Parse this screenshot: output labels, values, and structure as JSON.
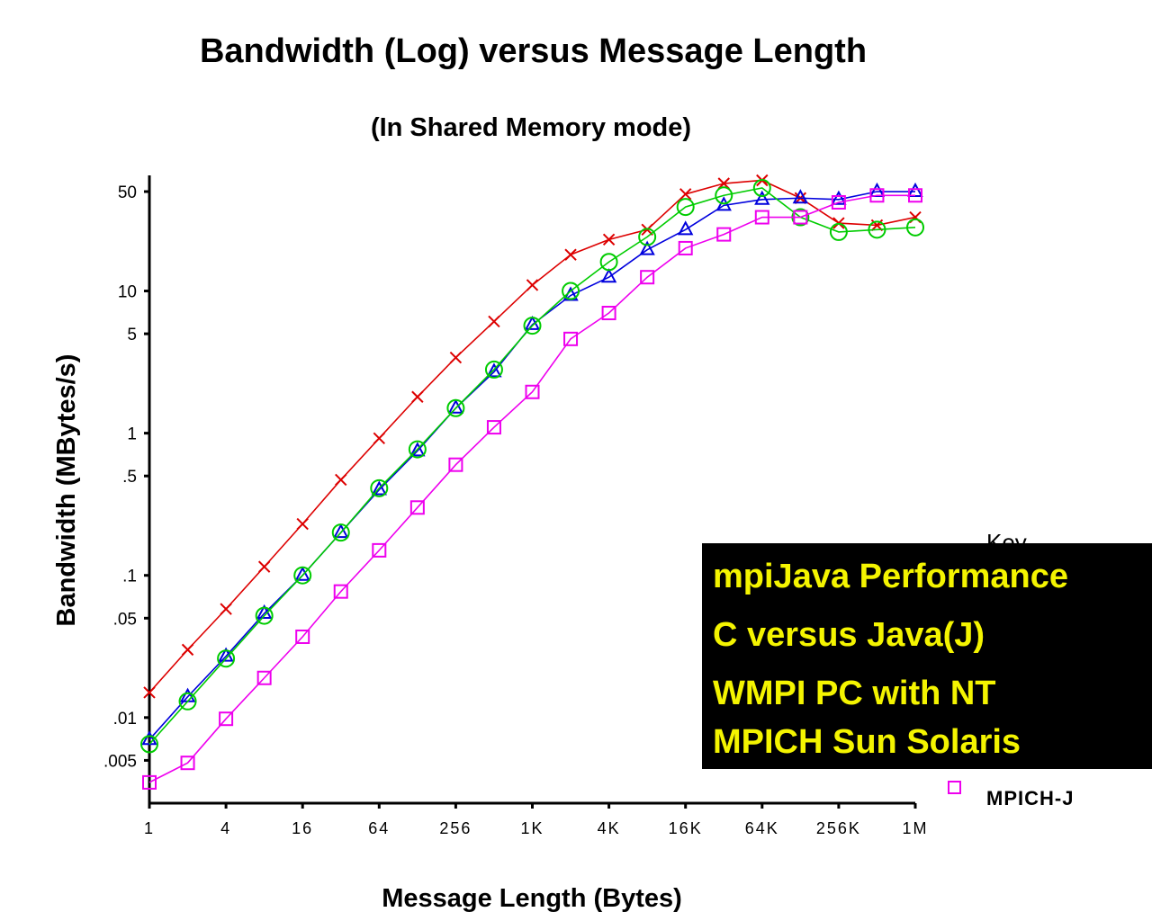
{
  "chart_data": {
    "type": "line",
    "title": "Bandwidth (Log) versus Message Length",
    "subtitle": "(In Shared Memory mode)",
    "xlabel": "Message Length (Bytes)",
    "ylabel": "Bandwidth (MBytes/s)",
    "x_scale": "log2",
    "y_scale": "log10",
    "categories": [
      "1",
      "2",
      "4",
      "8",
      "16",
      "32",
      "64",
      "128",
      "256",
      "512",
      "1K",
      "2K",
      "4K",
      "8K",
      "16K",
      "32K",
      "64K",
      "128K",
      "256K",
      "512K",
      "1M"
    ],
    "x_tick_labels": [
      "1",
      "4",
      "16",
      "64",
      "256",
      "1K",
      "4K",
      "16K",
      "64K",
      "256K",
      "1M"
    ],
    "y_tick_labels": [
      "50",
      "10",
      "5",
      "1",
      ".5",
      ".1",
      ".05",
      ".01",
      ".005"
    ],
    "y_tick_values": [
      50,
      10,
      5,
      1,
      0.5,
      0.1,
      0.05,
      0.01,
      0.005
    ],
    "ylim": [
      0.0025,
      65
    ],
    "grid": false,
    "series": [
      {
        "color": "#dd0000",
        "marker": "x",
        "values": [
          0.015,
          0.03,
          0.058,
          0.115,
          0.23,
          0.47,
          0.92,
          1.8,
          3.4,
          6.1,
          11,
          18,
          23,
          27,
          48,
          57,
          60,
          45,
          30,
          29,
          33
        ]
      },
      {
        "color": "#0000dd",
        "marker": "triangle",
        "values": [
          0.007,
          0.014,
          0.027,
          0.054,
          0.1,
          0.2,
          0.4,
          0.75,
          1.5,
          2.7,
          5.8,
          9.3,
          12.5,
          19.5,
          27,
          40,
          44,
          45,
          44,
          50,
          50
        ]
      },
      {
        "color": "#00cc00",
        "marker": "circle",
        "values": [
          0.0065,
          0.013,
          0.026,
          0.052,
          0.1,
          0.2,
          0.41,
          0.77,
          1.5,
          2.8,
          5.7,
          10,
          16,
          24,
          39,
          47,
          53,
          33,
          26,
          27,
          28
        ]
      },
      {
        "color": "#ee00ee",
        "marker": "square",
        "name": "MPICH-J",
        "values": [
          0.0035,
          0.0048,
          0.0098,
          0.019,
          0.037,
          0.077,
          0.15,
          0.3,
          0.6,
          1.1,
          1.95,
          4.6,
          7,
          12.5,
          20,
          25,
          33,
          33,
          42,
          47,
          47
        ]
      }
    ]
  },
  "legend": {
    "key_label": "Key",
    "visible_entry": "MPICH-J"
  },
  "overlay": {
    "line1": "mpiJava Performance",
    "line2": "C versus Java(J)",
    "line3": "WMPI PC with NT",
    "line4": "MPICH Sun Solaris",
    "background": "#000000",
    "text_color": "#f4f400"
  }
}
